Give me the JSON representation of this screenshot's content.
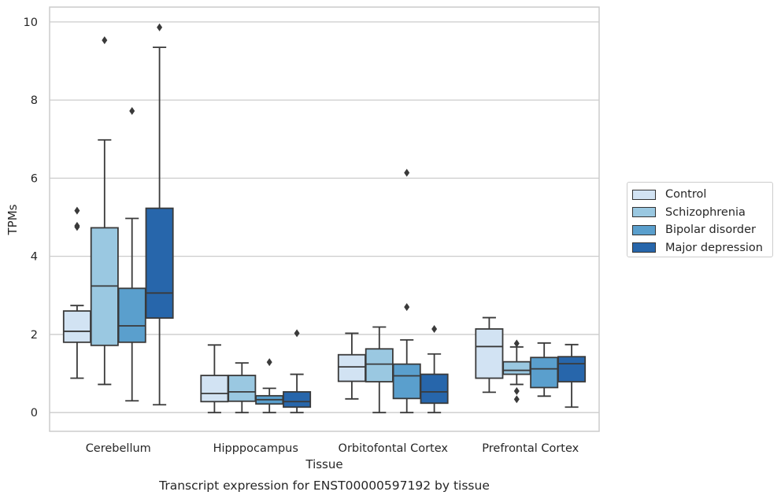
{
  "chart_data": {
    "type": "boxplot",
    "title": "Transcript expression for ENST00000597192 by tissue",
    "xlabel": "Tissue",
    "ylabel": "TPMs",
    "ylim": [
      -0.48,
      10.38
    ],
    "yticks": [
      0,
      2,
      4,
      6,
      8,
      10
    ],
    "grid": "horizontal",
    "legend_position": "right",
    "categories": [
      "Cerebellum",
      "Hipppocampus",
      "Orbitofontal Cortex",
      "Prefrontal Cortex"
    ],
    "series": [
      {
        "name": "Control",
        "color": "#d2e3f3",
        "boxes": [
          {
            "whislo": 0.88,
            "q1": 1.8,
            "med": 2.08,
            "q3": 2.6,
            "whishi": 2.74,
            "fliers": [
              4.75,
              4.78,
              5.17
            ]
          },
          {
            "whislo": 0.0,
            "q1": 0.28,
            "med": 0.49,
            "q3": 0.95,
            "whishi": 1.73,
            "fliers": []
          },
          {
            "whislo": 0.35,
            "q1": 0.8,
            "med": 1.17,
            "q3": 1.48,
            "whishi": 2.03,
            "fliers": []
          },
          {
            "whislo": 0.52,
            "q1": 0.88,
            "med": 1.69,
            "q3": 2.14,
            "whishi": 2.43,
            "fliers": []
          }
        ]
      },
      {
        "name": "Schizophrenia",
        "color": "#9ac8e1",
        "boxes": [
          {
            "whislo": 0.72,
            "q1": 1.72,
            "med": 3.24,
            "q3": 4.73,
            "whishi": 6.98,
            "fliers": [
              9.53
            ]
          },
          {
            "whislo": 0.0,
            "q1": 0.29,
            "med": 0.53,
            "q3": 0.95,
            "whishi": 1.27,
            "fliers": []
          },
          {
            "whislo": 0.0,
            "q1": 0.79,
            "med": 1.24,
            "q3": 1.63,
            "whishi": 2.19,
            "fliers": []
          },
          {
            "whislo": 0.72,
            "q1": 0.98,
            "med": 1.08,
            "q3": 1.3,
            "whishi": 1.68,
            "fliers": [
              0.34,
              0.55,
              1.77
            ]
          }
        ]
      },
      {
        "name": "Bipolar disorder",
        "color": "#5a9fcd",
        "boxes": [
          {
            "whislo": 0.3,
            "q1": 1.8,
            "med": 2.22,
            "q3": 3.18,
            "whishi": 4.97,
            "fliers": [
              7.72
            ]
          },
          {
            "whislo": 0.0,
            "q1": 0.22,
            "med": 0.33,
            "q3": 0.43,
            "whishi": 0.62,
            "fliers": [
              1.29
            ]
          },
          {
            "whislo": 0.0,
            "q1": 0.36,
            "med": 0.94,
            "q3": 1.24,
            "whishi": 1.86,
            "fliers": [
              2.7,
              6.14
            ]
          },
          {
            "whislo": 0.42,
            "q1": 0.64,
            "med": 1.12,
            "q3": 1.41,
            "whishi": 1.78,
            "fliers": []
          }
        ]
      },
      {
        "name": "Major depression",
        "color": "#2766ab",
        "boxes": [
          {
            "whislo": 0.2,
            "q1": 2.42,
            "med": 3.06,
            "q3": 5.23,
            "whishi": 9.35,
            "fliers": [
              9.86
            ]
          },
          {
            "whislo": 0.0,
            "q1": 0.14,
            "med": 0.28,
            "q3": 0.53,
            "whishi": 0.98,
            "fliers": [
              2.03
            ]
          },
          {
            "whislo": 0.0,
            "q1": 0.24,
            "med": 0.53,
            "q3": 0.98,
            "whishi": 1.5,
            "fliers": [
              2.14
            ]
          },
          {
            "whislo": 0.14,
            "q1": 0.79,
            "med": 1.25,
            "q3": 1.43,
            "whishi": 1.74,
            "fliers": []
          }
        ]
      }
    ]
  }
}
